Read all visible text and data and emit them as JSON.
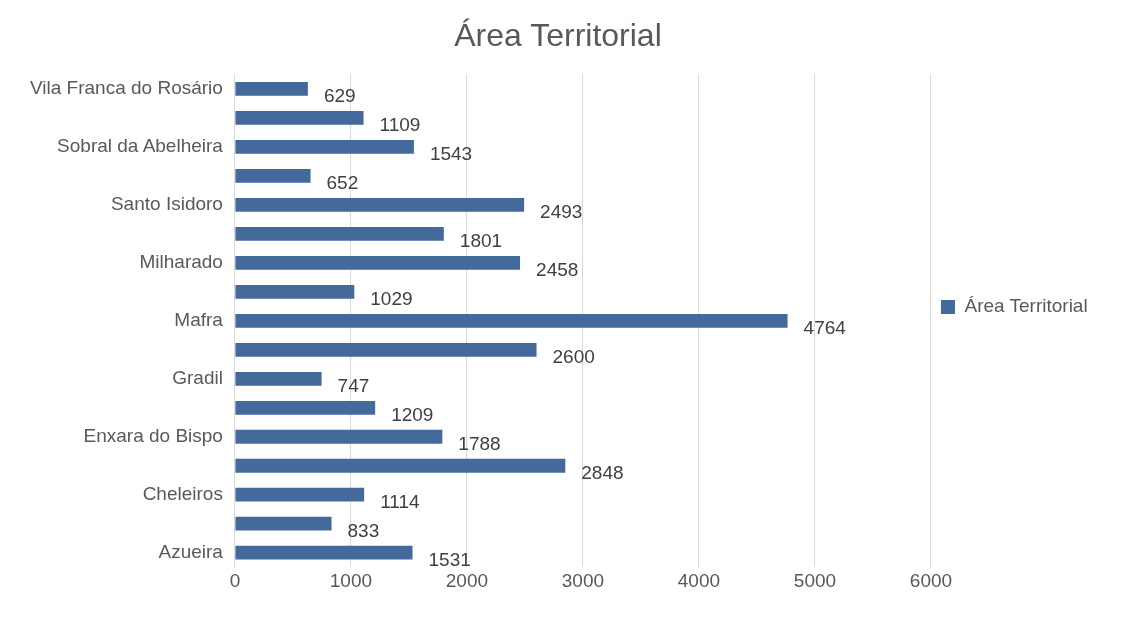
{
  "chart_data": {
    "type": "bar",
    "orientation": "horizontal",
    "title": "Área Territorial",
    "categories": [
      "Vila Franca do Rosário",
      null,
      "Sobral da Abelheira",
      null,
      "Santo Isidoro",
      null,
      "Milharado",
      null,
      "Mafra",
      null,
      "Gradil",
      null,
      "Enxara do Bispo",
      null,
      "Cheleiros",
      null,
      "Azueira"
    ],
    "series": [
      {
        "name": "Área Territorial",
        "color": "#44699b",
        "values": [
          629,
          1109,
          1543,
          652,
          2493,
          1801,
          2458,
          1029,
          4764,
          2600,
          747,
          1209,
          1788,
          2848,
          1114,
          833,
          1531
        ]
      }
    ],
    "xlim": [
      0,
      6000
    ],
    "xticks": [
      0,
      1000,
      2000,
      3000,
      4000,
      5000,
      6000
    ],
    "grid": "x",
    "legend": "right",
    "data_labels": true
  }
}
